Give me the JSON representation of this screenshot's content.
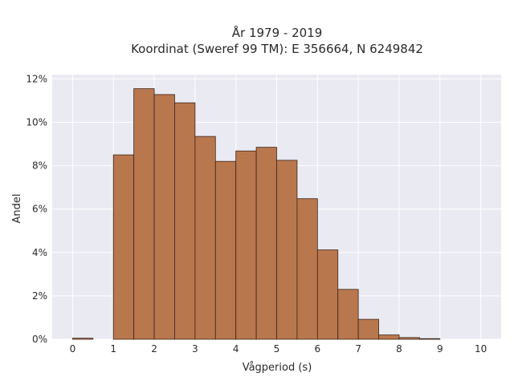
{
  "chart_data": {
    "type": "bar",
    "title_line1": "År 1979 - 2019",
    "title_line2": "Koordinat (Sweref 99 TM): E 356664, N 6249842",
    "xlabel": "Vågperiod (s)",
    "ylabel": "Andel",
    "xlim": [
      -0.5,
      10.5
    ],
    "ylim": [
      0,
      12.2
    ],
    "xticks": [
      "0",
      "1",
      "2",
      "3",
      "4",
      "5",
      "6",
      "7",
      "8",
      "9",
      "10"
    ],
    "yticks": [
      "0%",
      "2%",
      "4%",
      "6%",
      "8%",
      "10%",
      "12%"
    ],
    "bin_width": 0.5,
    "bin_starts": [
      0,
      0.5,
      1,
      1.5,
      2,
      2.5,
      3,
      3.5,
      4,
      4.5,
      5,
      5.5,
      6,
      6.5,
      7,
      7.5,
      8,
      8.5,
      9,
      9.5
    ],
    "values": [
      0.05,
      0,
      8.5,
      11.55,
      11.28,
      10.9,
      9.35,
      8.2,
      8.68,
      8.85,
      8.25,
      6.48,
      4.12,
      2.3,
      0.92,
      0.2,
      0.08,
      0.03,
      0,
      0
    ],
    "grid": true,
    "colors": {
      "bar_fill": "#b9774e",
      "bar_stroke": "#3b2418",
      "plot_bg": "#eaeaf2",
      "grid": "#ffffff"
    }
  }
}
